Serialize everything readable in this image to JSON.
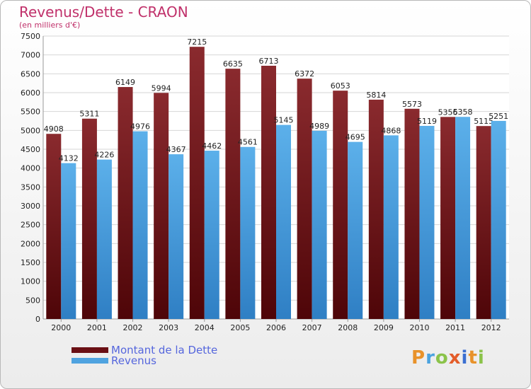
{
  "chart_data": {
    "type": "bar",
    "title": "Revenus/Dette - CRAON",
    "subtitle": "(en milliers d'€)",
    "categories": [
      "2000",
      "2001",
      "2002",
      "2003",
      "2004",
      "2005",
      "2006",
      "2007",
      "2008",
      "2009",
      "2010",
      "2011",
      "2012"
    ],
    "series": [
      {
        "name": "Montant de la Dette",
        "color": "#7a1a1e",
        "values": [
          4908,
          5311,
          6149,
          5994,
          7215,
          6635,
          6713,
          6372,
          6053,
          5814,
          5573,
          5356,
          5115
        ]
      },
      {
        "name": "Revenus",
        "color": "#4fa3e0",
        "values": [
          4132,
          4226,
          4976,
          4367,
          4462,
          4561,
          5145,
          4989,
          4695,
          4868,
          5119,
          5358,
          5251
        ]
      }
    ],
    "ylim": [
      0,
      7500
    ],
    "yticks": [
      0,
      500,
      1000,
      1500,
      2000,
      2500,
      3000,
      3500,
      4000,
      4500,
      5000,
      5500,
      6000,
      6500,
      7000,
      7500
    ],
    "grid": true,
    "legend_position": "bottom-left"
  },
  "logo": {
    "letters": [
      "P",
      "r",
      "o",
      "x",
      "i",
      "t",
      "i"
    ]
  }
}
